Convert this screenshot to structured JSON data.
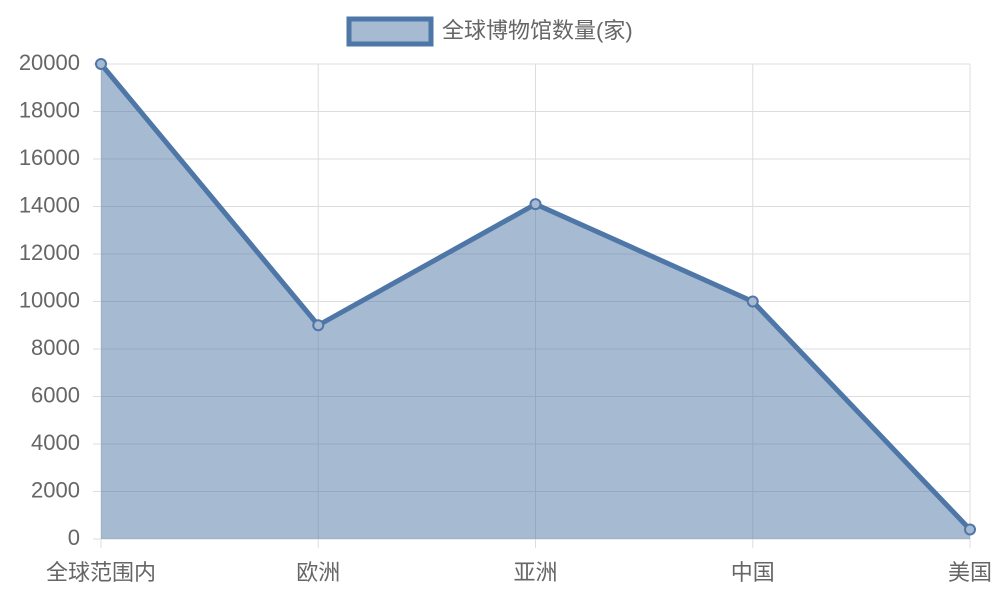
{
  "chart_data": {
    "type": "area",
    "categories": [
      "全球范围内",
      "欧洲",
      "亚洲",
      "中国",
      "美国"
    ],
    "series": [
      {
        "name": "全球博物馆数量(家)",
        "color": "#4e76a6",
        "values": [
          20000,
          9000,
          14100,
          10000,
          400
        ]
      }
    ],
    "ylim": [
      0,
      20000
    ],
    "yticks": [
      0,
      2000,
      4000,
      6000,
      8000,
      10000,
      12000,
      14000,
      16000,
      18000,
      20000
    ],
    "grid": true,
    "legend": "top"
  }
}
